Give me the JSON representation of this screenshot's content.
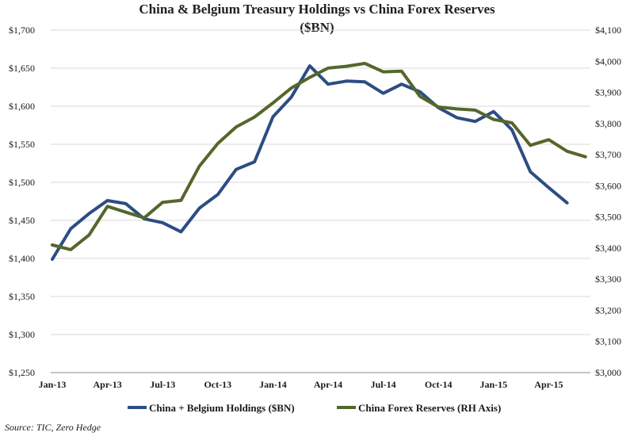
{
  "chart_data": {
    "type": "line",
    "title": "China & Belgium Treasury Holdings vs China Forex Reserves",
    "subtitle": "($BN)",
    "source": "Source: TIC, Zero Hedge",
    "x": [
      "Jan-13",
      "Feb-13",
      "Mar-13",
      "Apr-13",
      "May-13",
      "Jun-13",
      "Jul-13",
      "Aug-13",
      "Sep-13",
      "Oct-13",
      "Nov-13",
      "Dec-13",
      "Jan-14",
      "Feb-14",
      "Mar-14",
      "Apr-14",
      "May-14",
      "Jun-14",
      "Jul-14",
      "Aug-14",
      "Sep-14",
      "Oct-14",
      "Nov-14",
      "Dec-14",
      "Jan-15",
      "Feb-15",
      "Mar-15",
      "Apr-15",
      "May-15",
      "Jun-15"
    ],
    "x_tick_labels": [
      "Jan-13",
      "Apr-13",
      "Jul-13",
      "Oct-13",
      "Jan-14",
      "Apr-14",
      "Jul-14",
      "Oct-14",
      "Jan-15",
      "Apr-15"
    ],
    "y_left": {
      "ylim": [
        1250,
        1700
      ],
      "ticks": [
        1250,
        1300,
        1350,
        1400,
        1450,
        1500,
        1550,
        1600,
        1650,
        1700
      ],
      "tick_labels": [
        "$1,250",
        "$1,300",
        "$1,350",
        "$1,400",
        "$1,450",
        "$1,500",
        "$1,550",
        "$1,600",
        "$1,650",
        "$1,700"
      ]
    },
    "y_right": {
      "ylim": [
        3000,
        4100
      ],
      "ticks": [
        3000,
        3100,
        3200,
        3300,
        3400,
        3500,
        3600,
        3700,
        3800,
        3900,
        4000,
        4100
      ],
      "tick_labels": [
        "$3,000",
        "$3,100",
        "$3,200",
        "$3,300",
        "$3,400",
        "$3,500",
        "$3,600",
        "$3,700",
        "$3,800",
        "$3,900",
        "$4,000",
        "$4,100"
      ]
    },
    "series": [
      {
        "name": "China + Belgium Holdings ($BN)",
        "axis": "left",
        "color": "#2c4d83",
        "values": [
          1399,
          1439,
          1459,
          1476,
          1472,
          1452,
          1447,
          1435,
          1466,
          1484,
          1517,
          1527,
          1586,
          1612,
          1653,
          1629,
          1633,
          1632,
          1617,
          1629,
          1619,
          1598,
          1585,
          1580,
          1593,
          1569,
          1514,
          1493,
          1473,
          null
        ]
      },
      {
        "name": "China Forex Reserves (RH Axis)",
        "axis": "right",
        "color": "#55662c",
        "values": [
          3410,
          3395,
          3442,
          3534,
          3515,
          3497,
          3547,
          3553,
          3663,
          3736,
          3789,
          3821,
          3866,
          3914,
          3948,
          3978,
          3984,
          3993,
          3966,
          3968,
          3887,
          3853,
          3847,
          3843,
          3813,
          3802,
          3730,
          3748,
          3711,
          3693
        ]
      }
    ]
  }
}
